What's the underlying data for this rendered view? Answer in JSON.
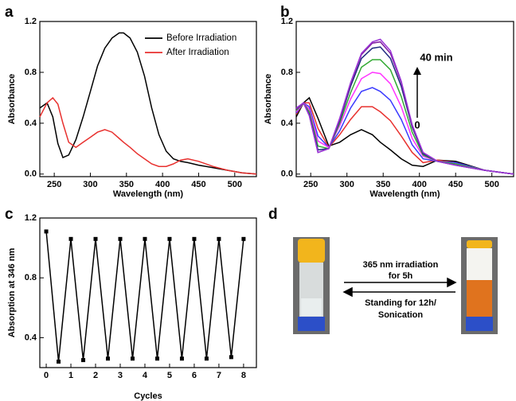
{
  "chart_data": [
    {
      "type": "line",
      "label": "a",
      "xlabel": "Wavelength (nm)",
      "ylabel": "Absorbance",
      "x": [
        230,
        240,
        248,
        255,
        262,
        270,
        280,
        290,
        300,
        310,
        320,
        330,
        340,
        346,
        355,
        365,
        375,
        385,
        395,
        405,
        415,
        425,
        435,
        450,
        470,
        490,
        510,
        530
      ],
      "series": [
        {
          "name": "Before Irradiation",
          "color": "#000000",
          "values": [
            0.52,
            0.56,
            0.45,
            0.24,
            0.13,
            0.15,
            0.27,
            0.45,
            0.65,
            0.85,
            0.99,
            1.07,
            1.11,
            1.11,
            1.07,
            0.96,
            0.77,
            0.52,
            0.31,
            0.18,
            0.12,
            0.1,
            0.09,
            0.07,
            0.05,
            0.03,
            0.01,
            0
          ]
        },
        {
          "name": "After Irradiation",
          "color": "#e8312f",
          "values": [
            0.45,
            0.56,
            0.6,
            0.55,
            0.4,
            0.25,
            0.21,
            0.25,
            0.29,
            0.33,
            0.35,
            0.33,
            0.28,
            0.25,
            0.21,
            0.16,
            0.12,
            0.08,
            0.06,
            0.06,
            0.08,
            0.11,
            0.12,
            0.1,
            0.06,
            0.03,
            0.01,
            0
          ]
        }
      ],
      "xlim": [
        230,
        530
      ],
      "xticks": [
        250,
        300,
        350,
        400,
        450,
        500
      ],
      "ylim": [
        -0.02,
        1.2
      ],
      "yticks": [
        {
          "value": 0,
          "label": "0.0"
        },
        0.4,
        0.8,
        1.2
      ],
      "legend": "upper right"
    },
    {
      "type": "line",
      "label": "b",
      "xlabel": "Wavelength (nm)",
      "ylabel": "Absorbance",
      "x": [
        230,
        240,
        248,
        260,
        275,
        290,
        305,
        320,
        335,
        346,
        360,
        375,
        390,
        405,
        425,
        450,
        490,
        530
      ],
      "series": [
        {
          "color": "#000000",
          "values": [
            0.45,
            0.56,
            0.6,
            0.44,
            0.22,
            0.25,
            0.31,
            0.35,
            0.31,
            0.25,
            0.19,
            0.12,
            0.07,
            0.06,
            0.11,
            0.1,
            0.03,
            0
          ]
        },
        {
          "color": "#e8312f",
          "values": [
            0.47,
            0.56,
            0.56,
            0.36,
            0.21,
            0.31,
            0.43,
            0.53,
            0.53,
            0.49,
            0.42,
            0.3,
            0.17,
            0.09,
            0.11,
            0.09,
            0.03,
            0
          ]
        },
        {
          "color": "#3a3aff",
          "values": [
            0.48,
            0.56,
            0.53,
            0.3,
            0.21,
            0.34,
            0.52,
            0.65,
            0.68,
            0.65,
            0.58,
            0.43,
            0.23,
            0.12,
            0.1,
            0.09,
            0.03,
            0
          ]
        },
        {
          "color": "#ff33ff",
          "values": [
            0.49,
            0.56,
            0.51,
            0.26,
            0.21,
            0.38,
            0.59,
            0.75,
            0.8,
            0.79,
            0.71,
            0.53,
            0.28,
            0.14,
            0.1,
            0.08,
            0.03,
            0
          ]
        },
        {
          "color": "#33aa33",
          "values": [
            0.5,
            0.56,
            0.49,
            0.22,
            0.2,
            0.4,
            0.64,
            0.84,
            0.9,
            0.9,
            0.82,
            0.61,
            0.33,
            0.15,
            0.1,
            0.08,
            0.03,
            0
          ]
        },
        {
          "color": "#1f2a80",
          "values": [
            0.51,
            0.56,
            0.47,
            0.19,
            0.2,
            0.42,
            0.69,
            0.91,
            0.99,
            1.0,
            0.91,
            0.69,
            0.37,
            0.16,
            0.1,
            0.07,
            0.03,
            0
          ]
        },
        {
          "color": "#7f1fa0",
          "values": [
            0.51,
            0.56,
            0.46,
            0.17,
            0.2,
            0.43,
            0.71,
            0.94,
            1.03,
            1.04,
            0.95,
            0.72,
            0.38,
            0.17,
            0.1,
            0.07,
            0.03,
            0
          ]
        },
        {
          "color": "#9a35d6",
          "values": [
            0.52,
            0.56,
            0.46,
            0.17,
            0.2,
            0.44,
            0.72,
            0.95,
            1.04,
            1.06,
            0.97,
            0.73,
            0.39,
            0.17,
            0.1,
            0.07,
            0.03,
            0
          ]
        }
      ],
      "xlim": [
        230,
        530
      ],
      "xticks": [
        250,
        300,
        350,
        400,
        450,
        500
      ],
      "ylim": [
        -0.02,
        1.2
      ],
      "yticks": [
        {
          "value": 0,
          "label": "0.0"
        },
        0.4,
        0.8,
        1.2
      ],
      "annotations": [
        "40 min",
        "0"
      ]
    },
    {
      "type": "line",
      "label": "c",
      "xlabel": "Cycles",
      "ylabel": "Absorption at 346 nm",
      "markers": true,
      "color": "#000000",
      "x": [
        0,
        0.5,
        1,
        1.5,
        2,
        2.5,
        3,
        3.5,
        4,
        4.5,
        5,
        5.5,
        6,
        6.5,
        7,
        7.5,
        8
      ],
      "values": [
        1.11,
        0.24,
        1.06,
        0.25,
        1.06,
        0.26,
        1.06,
        0.26,
        1.06,
        0.26,
        1.06,
        0.26,
        1.06,
        0.26,
        1.06,
        0.27,
        1.06
      ],
      "xlim": [
        -0.26,
        8.52
      ],
      "xticks": [
        0,
        1,
        2,
        3,
        4,
        5,
        6,
        7,
        8
      ],
      "ylim": [
        0.2,
        1.2
      ],
      "yticks": [
        0.4,
        0.8,
        1.2
      ]
    }
  ],
  "diagram": {
    "label": "d",
    "forward": [
      "365 nm irradiation",
      "for 5h"
    ],
    "backward": [
      "Standing for 12h/",
      "Sonication"
    ]
  }
}
